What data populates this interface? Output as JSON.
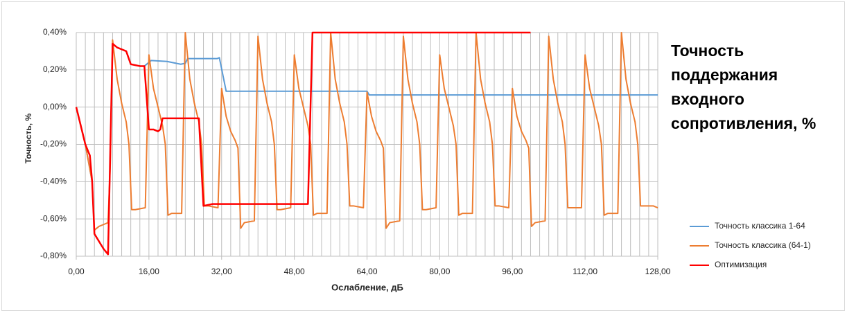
{
  "chart_data": {
    "type": "line",
    "title": "Точность поддержания входного сопротивления, %",
    "x_label": "Ослабление, дБ",
    "y_label": "Точность, %",
    "xlim": [
      0,
      128
    ],
    "ylim": [
      -0.8,
      0.4
    ],
    "xticks": [
      {
        "value": 0,
        "label": "0,00"
      },
      {
        "value": 16,
        "label": "16,00"
      },
      {
        "value": 32,
        "label": "32,00"
      },
      {
        "value": 48,
        "label": "48,00"
      },
      {
        "value": 64,
        "label": "64,00"
      },
      {
        "value": 80,
        "label": "80,00"
      },
      {
        "value": 96,
        "label": "96,00"
      },
      {
        "value": 112,
        "label": "112,00"
      },
      {
        "value": 128,
        "label": "128,00"
      }
    ],
    "yticks": [
      {
        "value": -0.8,
        "label": "-0,80%"
      },
      {
        "value": -0.6,
        "label": "-0,60%"
      },
      {
        "value": -0.4,
        "label": "-0,40%"
      },
      {
        "value": -0.2,
        "label": "-0,20%"
      },
      {
        "value": 0,
        "label": "0,00%"
      },
      {
        "value": 0.2,
        "label": "0,20%"
      },
      {
        "value": 0.4,
        "label": "0,40%"
      }
    ],
    "grid": true,
    "x_grid_step": 2,
    "legend": "right",
    "series": [
      {
        "name": "Точность классика 1-64",
        "color": "#5b9bd5",
        "x": [
          0,
          2,
          3.5,
          4,
          5,
          6,
          7,
          8,
          9,
          10,
          11,
          12,
          14,
          15,
          16,
          16.5,
          20,
          23,
          24,
          24.5,
          31,
          31.5,
          33,
          64,
          64.5,
          128
        ],
        "values": [
          0,
          -0.2,
          -0.4,
          -0.68,
          -0.72,
          -0.76,
          -0.79,
          0.34,
          0.32,
          0.31,
          0.3,
          0.23,
          0.22,
          0.22,
          0.24,
          0.25,
          0.245,
          0.23,
          0.235,
          0.26,
          0.26,
          0.265,
          0.085,
          0.085,
          0.065,
          0.065
        ]
      },
      {
        "name": "Точность классика (64-1)",
        "color": "#ed7d31",
        "x": [
          0,
          2,
          3.5,
          4,
          5,
          6,
          7,
          7.5,
          8,
          9,
          10,
          11,
          11.6,
          12.2,
          13,
          15.2,
          16,
          17,
          18,
          19,
          19.6,
          20.2,
          21,
          23.2,
          24,
          25,
          26,
          27,
          27.6,
          28.2,
          29,
          31.2,
          32,
          33,
          34,
          35,
          35.6,
          36.2,
          37,
          39.2,
          40,
          41,
          42,
          43,
          43.6,
          44.2,
          45,
          47.2,
          48,
          49,
          50,
          51,
          51.6,
          52.2,
          53,
          55.2,
          56,
          57,
          58,
          59,
          59.6,
          60.2,
          61,
          63.2,
          64,
          65,
          66,
          67,
          67.6,
          68.2,
          69,
          71.2,
          72,
          73,
          74,
          75,
          75.6,
          76.2,
          77,
          79.2,
          80,
          81,
          82,
          83,
          83.6,
          84.2,
          85,
          87.2,
          88,
          89,
          90,
          91,
          91.6,
          92.2,
          93,
          95.2,
          96,
          97,
          98,
          99,
          99.6,
          100.2,
          101,
          103.2,
          104,
          105,
          106,
          107,
          107.6,
          108.2,
          109,
          111.2,
          112,
          113,
          114,
          115,
          115.6,
          116.2,
          117,
          119.2,
          120,
          121,
          122,
          123,
          123.6,
          124.2,
          125,
          127,
          128
        ],
        "values": [
          0,
          -0.2,
          -0.4,
          -0.66,
          -0.64,
          -0.63,
          -0.62,
          -0.3,
          0.36,
          0.15,
          0.02,
          -0.08,
          -0.2,
          -0.55,
          -0.55,
          -0.54,
          0.28,
          0.1,
          0,
          -0.1,
          -0.2,
          -0.58,
          -0.57,
          -0.57,
          0.4,
          0.15,
          0.02,
          -0.08,
          -0.2,
          -0.53,
          -0.53,
          -0.54,
          0.1,
          -0.05,
          -0.13,
          -0.18,
          -0.22,
          -0.65,
          -0.62,
          -0.61,
          0.38,
          0.15,
          0.02,
          -0.08,
          -0.2,
          -0.55,
          -0.55,
          -0.54,
          0.28,
          0.1,
          0,
          -0.1,
          -0.2,
          -0.58,
          -0.57,
          -0.57,
          0.4,
          0.15,
          0.02,
          -0.08,
          -0.2,
          -0.53,
          -0.53,
          -0.54,
          0.08,
          -0.05,
          -0.13,
          -0.18,
          -0.22,
          -0.65,
          -0.62,
          -0.61,
          0.38,
          0.15,
          0.02,
          -0.08,
          -0.2,
          -0.55,
          -0.55,
          -0.54,
          0.28,
          0.1,
          0,
          -0.1,
          -0.2,
          -0.58,
          -0.57,
          -0.57,
          0.4,
          0.15,
          0.02,
          -0.08,
          -0.2,
          -0.53,
          -0.53,
          -0.54,
          0.1,
          -0.05,
          -0.13,
          -0.18,
          -0.22,
          -0.64,
          -0.62,
          -0.61,
          0.38,
          0.15,
          0.02,
          -0.08,
          -0.2,
          -0.54,
          -0.54,
          -0.54,
          0.28,
          0.1,
          0,
          -0.1,
          -0.2,
          -0.58,
          -0.57,
          -0.57,
          0.4,
          0.15,
          0.02,
          -0.08,
          -0.2,
          -0.53,
          -0.53,
          -0.53,
          -0.54
        ]
      },
      {
        "name": "Оптимизация",
        "color": "#ff0000",
        "x": [
          0,
          1,
          2,
          3,
          3.5,
          4,
          5,
          6,
          7,
          8,
          9,
          10,
          11,
          12,
          14,
          15,
          16,
          17,
          18,
          18.5,
          19,
          22,
          26,
          27,
          28,
          30,
          40,
          51,
          52,
          53,
          100
        ],
        "values": [
          0,
          -0.1,
          -0.2,
          -0.26,
          -0.4,
          -0.68,
          -0.72,
          -0.76,
          -0.79,
          0.34,
          0.32,
          0.31,
          0.3,
          0.23,
          0.22,
          0.22,
          -0.12,
          -0.12,
          -0.13,
          -0.12,
          -0.06,
          -0.06,
          -0.06,
          -0.06,
          -0.53,
          -0.52,
          -0.52,
          -0.52,
          0.4,
          0.4,
          0.4
        ]
      }
    ]
  }
}
